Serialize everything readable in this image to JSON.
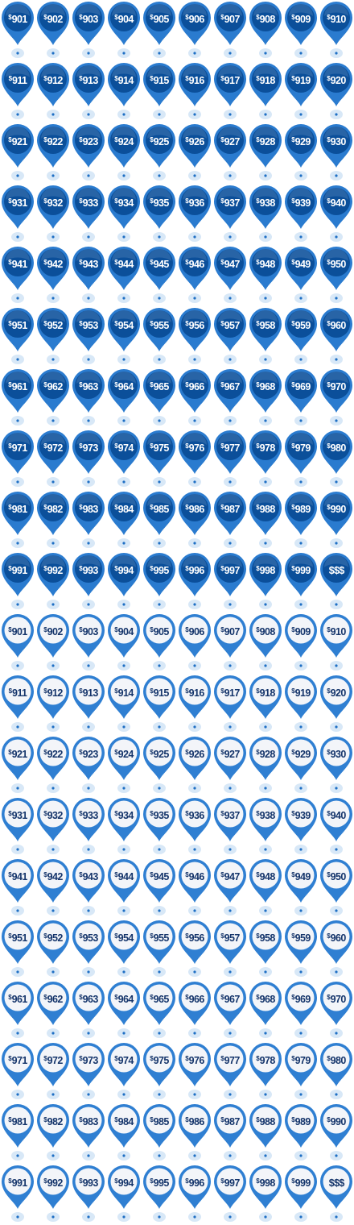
{
  "colors": {
    "filled_pin_outer": "#2a7bcf",
    "filled_pin_inner": "#0b4f9a",
    "filled_label_text": "#ffffff",
    "outline_pin_outer": "#2f7fd2",
    "outline_pin_inner": "#f3f5f9",
    "outline_label_text": "#15356b",
    "shadow": "#d8e8f7",
    "anchor_dot": "#1f6fc4"
  },
  "icons": [
    "map-pin-icon",
    "map-pin-outline-icon"
  ],
  "marker_sets": [
    {
      "style": "filled",
      "rows": [
        [
          {
            "symbol": "$",
            "amount": "901"
          },
          {
            "symbol": "$",
            "amount": "902"
          },
          {
            "symbol": "$",
            "amount": "903"
          },
          {
            "symbol": "$",
            "amount": "904"
          },
          {
            "symbol": "$",
            "amount": "905"
          },
          {
            "symbol": "$",
            "amount": "906"
          },
          {
            "symbol": "$",
            "amount": "907"
          },
          {
            "symbol": "$",
            "amount": "908"
          },
          {
            "symbol": "$",
            "amount": "909"
          },
          {
            "symbol": "$",
            "amount": "910"
          }
        ],
        [
          {
            "symbol": "$",
            "amount": "911"
          },
          {
            "symbol": "$",
            "amount": "912"
          },
          {
            "symbol": "$",
            "amount": "913"
          },
          {
            "symbol": "$",
            "amount": "914"
          },
          {
            "symbol": "$",
            "amount": "915"
          },
          {
            "symbol": "$",
            "amount": "916"
          },
          {
            "symbol": "$",
            "amount": "917"
          },
          {
            "symbol": "$",
            "amount": "918"
          },
          {
            "symbol": "$",
            "amount": "919"
          },
          {
            "symbol": "$",
            "amount": "920"
          }
        ],
        [
          {
            "symbol": "$",
            "amount": "921"
          },
          {
            "symbol": "$",
            "amount": "922"
          },
          {
            "symbol": "$",
            "amount": "923"
          },
          {
            "symbol": "$",
            "amount": "924"
          },
          {
            "symbol": "$",
            "amount": "925"
          },
          {
            "symbol": "$",
            "amount": "926"
          },
          {
            "symbol": "$",
            "amount": "927"
          },
          {
            "symbol": "$",
            "amount": "928"
          },
          {
            "symbol": "$",
            "amount": "929"
          },
          {
            "symbol": "$",
            "amount": "930"
          }
        ],
        [
          {
            "symbol": "$",
            "amount": "931"
          },
          {
            "symbol": "$",
            "amount": "932"
          },
          {
            "symbol": "$",
            "amount": "933"
          },
          {
            "symbol": "$",
            "amount": "934"
          },
          {
            "symbol": "$",
            "amount": "935"
          },
          {
            "symbol": "$",
            "amount": "936"
          },
          {
            "symbol": "$",
            "amount": "937"
          },
          {
            "symbol": "$",
            "amount": "938"
          },
          {
            "symbol": "$",
            "amount": "939"
          },
          {
            "symbol": "$",
            "amount": "940"
          }
        ],
        [
          {
            "symbol": "$",
            "amount": "941"
          },
          {
            "symbol": "$",
            "amount": "942"
          },
          {
            "symbol": "$",
            "amount": "943"
          },
          {
            "symbol": "$",
            "amount": "944"
          },
          {
            "symbol": "$",
            "amount": "945"
          },
          {
            "symbol": "$",
            "amount": "946"
          },
          {
            "symbol": "$",
            "amount": "947"
          },
          {
            "symbol": "$",
            "amount": "948"
          },
          {
            "symbol": "$",
            "amount": "949"
          },
          {
            "symbol": "$",
            "amount": "950"
          }
        ],
        [
          {
            "symbol": "$",
            "amount": "951"
          },
          {
            "symbol": "$",
            "amount": "952"
          },
          {
            "symbol": "$",
            "amount": "953"
          },
          {
            "symbol": "$",
            "amount": "954"
          },
          {
            "symbol": "$",
            "amount": "955"
          },
          {
            "symbol": "$",
            "amount": "956"
          },
          {
            "symbol": "$",
            "amount": "957"
          },
          {
            "symbol": "$",
            "amount": "958"
          },
          {
            "symbol": "$",
            "amount": "959"
          },
          {
            "symbol": "$",
            "amount": "960"
          }
        ],
        [
          {
            "symbol": "$",
            "amount": "961"
          },
          {
            "symbol": "$",
            "amount": "962"
          },
          {
            "symbol": "$",
            "amount": "963"
          },
          {
            "symbol": "$",
            "amount": "964"
          },
          {
            "symbol": "$",
            "amount": "965"
          },
          {
            "symbol": "$",
            "amount": "966"
          },
          {
            "symbol": "$",
            "amount": "967"
          },
          {
            "symbol": "$",
            "amount": "968"
          },
          {
            "symbol": "$",
            "amount": "969"
          },
          {
            "symbol": "$",
            "amount": "970"
          }
        ],
        [
          {
            "symbol": "$",
            "amount": "971"
          },
          {
            "symbol": "$",
            "amount": "972"
          },
          {
            "symbol": "$",
            "amount": "973"
          },
          {
            "symbol": "$",
            "amount": "974"
          },
          {
            "symbol": "$",
            "amount": "975"
          },
          {
            "symbol": "$",
            "amount": "976"
          },
          {
            "symbol": "$",
            "amount": "977"
          },
          {
            "symbol": "$",
            "amount": "978"
          },
          {
            "symbol": "$",
            "amount": "979"
          },
          {
            "symbol": "$",
            "amount": "980"
          }
        ],
        [
          {
            "symbol": "$",
            "amount": "981"
          },
          {
            "symbol": "$",
            "amount": "982"
          },
          {
            "symbol": "$",
            "amount": "983"
          },
          {
            "symbol": "$",
            "amount": "984"
          },
          {
            "symbol": "$",
            "amount": "985"
          },
          {
            "symbol": "$",
            "amount": "986"
          },
          {
            "symbol": "$",
            "amount": "987"
          },
          {
            "symbol": "$",
            "amount": "988"
          },
          {
            "symbol": "$",
            "amount": "989"
          },
          {
            "symbol": "$",
            "amount": "990"
          }
        ],
        [
          {
            "symbol": "$",
            "amount": "991"
          },
          {
            "symbol": "$",
            "amount": "992"
          },
          {
            "symbol": "$",
            "amount": "993"
          },
          {
            "symbol": "$",
            "amount": "994"
          },
          {
            "symbol": "$",
            "amount": "995"
          },
          {
            "symbol": "$",
            "amount": "996"
          },
          {
            "symbol": "$",
            "amount": "997"
          },
          {
            "symbol": "$",
            "amount": "998"
          },
          {
            "symbol": "$",
            "amount": "999"
          },
          {
            "symbol": "",
            "amount": "$$$"
          }
        ]
      ]
    },
    {
      "style": "outline",
      "rows": [
        [
          {
            "symbol": "$",
            "amount": "901"
          },
          {
            "symbol": "$",
            "amount": "902"
          },
          {
            "symbol": "$",
            "amount": "903"
          },
          {
            "symbol": "$",
            "amount": "904"
          },
          {
            "symbol": "$",
            "amount": "905"
          },
          {
            "symbol": "$",
            "amount": "906"
          },
          {
            "symbol": "$",
            "amount": "907"
          },
          {
            "symbol": "$",
            "amount": "908"
          },
          {
            "symbol": "$",
            "amount": "909"
          },
          {
            "symbol": "$",
            "amount": "910"
          }
        ],
        [
          {
            "symbol": "$",
            "amount": "911"
          },
          {
            "symbol": "$",
            "amount": "912"
          },
          {
            "symbol": "$",
            "amount": "913"
          },
          {
            "symbol": "$",
            "amount": "914"
          },
          {
            "symbol": "$",
            "amount": "915"
          },
          {
            "symbol": "$",
            "amount": "916"
          },
          {
            "symbol": "$",
            "amount": "917"
          },
          {
            "symbol": "$",
            "amount": "918"
          },
          {
            "symbol": "$",
            "amount": "919"
          },
          {
            "symbol": "$",
            "amount": "920"
          }
        ],
        [
          {
            "symbol": "$",
            "amount": "921"
          },
          {
            "symbol": "$",
            "amount": "922"
          },
          {
            "symbol": "$",
            "amount": "923"
          },
          {
            "symbol": "$",
            "amount": "924"
          },
          {
            "symbol": "$",
            "amount": "925"
          },
          {
            "symbol": "$",
            "amount": "926"
          },
          {
            "symbol": "$",
            "amount": "927"
          },
          {
            "symbol": "$",
            "amount": "928"
          },
          {
            "symbol": "$",
            "amount": "929"
          },
          {
            "symbol": "$",
            "amount": "930"
          }
        ],
        [
          {
            "symbol": "$",
            "amount": "931"
          },
          {
            "symbol": "$",
            "amount": "932"
          },
          {
            "symbol": "$",
            "amount": "933"
          },
          {
            "symbol": "$",
            "amount": "934"
          },
          {
            "symbol": "$",
            "amount": "935"
          },
          {
            "symbol": "$",
            "amount": "936"
          },
          {
            "symbol": "$",
            "amount": "937"
          },
          {
            "symbol": "$",
            "amount": "938"
          },
          {
            "symbol": "$",
            "amount": "939"
          },
          {
            "symbol": "$",
            "amount": "940"
          }
        ],
        [
          {
            "symbol": "$",
            "amount": "941"
          },
          {
            "symbol": "$",
            "amount": "942"
          },
          {
            "symbol": "$",
            "amount": "943"
          },
          {
            "symbol": "$",
            "amount": "944"
          },
          {
            "symbol": "$",
            "amount": "945"
          },
          {
            "symbol": "$",
            "amount": "946"
          },
          {
            "symbol": "$",
            "amount": "947"
          },
          {
            "symbol": "$",
            "amount": "948"
          },
          {
            "symbol": "$",
            "amount": "949"
          },
          {
            "symbol": "$",
            "amount": "950"
          }
        ],
        [
          {
            "symbol": "$",
            "amount": "951"
          },
          {
            "symbol": "$",
            "amount": "952"
          },
          {
            "symbol": "$",
            "amount": "953"
          },
          {
            "symbol": "$",
            "amount": "954"
          },
          {
            "symbol": "$",
            "amount": "955"
          },
          {
            "symbol": "$",
            "amount": "956"
          },
          {
            "symbol": "$",
            "amount": "957"
          },
          {
            "symbol": "$",
            "amount": "958"
          },
          {
            "symbol": "$",
            "amount": "959"
          },
          {
            "symbol": "$",
            "amount": "960"
          }
        ],
        [
          {
            "symbol": "$",
            "amount": "961"
          },
          {
            "symbol": "$",
            "amount": "962"
          },
          {
            "symbol": "$",
            "amount": "963"
          },
          {
            "symbol": "$",
            "amount": "964"
          },
          {
            "symbol": "$",
            "amount": "965"
          },
          {
            "symbol": "$",
            "amount": "966"
          },
          {
            "symbol": "$",
            "amount": "967"
          },
          {
            "symbol": "$",
            "amount": "968"
          },
          {
            "symbol": "$",
            "amount": "969"
          },
          {
            "symbol": "$",
            "amount": "970"
          }
        ],
        [
          {
            "symbol": "$",
            "amount": "971"
          },
          {
            "symbol": "$",
            "amount": "972"
          },
          {
            "symbol": "$",
            "amount": "973"
          },
          {
            "symbol": "$",
            "amount": "974"
          },
          {
            "symbol": "$",
            "amount": "975"
          },
          {
            "symbol": "$",
            "amount": "976"
          },
          {
            "symbol": "$",
            "amount": "977"
          },
          {
            "symbol": "$",
            "amount": "978"
          },
          {
            "symbol": "$",
            "amount": "979"
          },
          {
            "symbol": "$",
            "amount": "980"
          }
        ],
        [
          {
            "symbol": "$",
            "amount": "981"
          },
          {
            "symbol": "$",
            "amount": "982"
          },
          {
            "symbol": "$",
            "amount": "983"
          },
          {
            "symbol": "$",
            "amount": "984"
          },
          {
            "symbol": "$",
            "amount": "985"
          },
          {
            "symbol": "$",
            "amount": "986"
          },
          {
            "symbol": "$",
            "amount": "987"
          },
          {
            "symbol": "$",
            "amount": "988"
          },
          {
            "symbol": "$",
            "amount": "989"
          },
          {
            "symbol": "$",
            "amount": "990"
          }
        ],
        [
          {
            "symbol": "$",
            "amount": "991"
          },
          {
            "symbol": "$",
            "amount": "992"
          },
          {
            "symbol": "$",
            "amount": "993"
          },
          {
            "symbol": "$",
            "amount": "994"
          },
          {
            "symbol": "$",
            "amount": "995"
          },
          {
            "symbol": "$",
            "amount": "996"
          },
          {
            "symbol": "$",
            "amount": "997"
          },
          {
            "symbol": "$",
            "amount": "998"
          },
          {
            "symbol": "$",
            "amount": "999"
          },
          {
            "symbol": "",
            "amount": "$$$"
          }
        ]
      ]
    }
  ]
}
